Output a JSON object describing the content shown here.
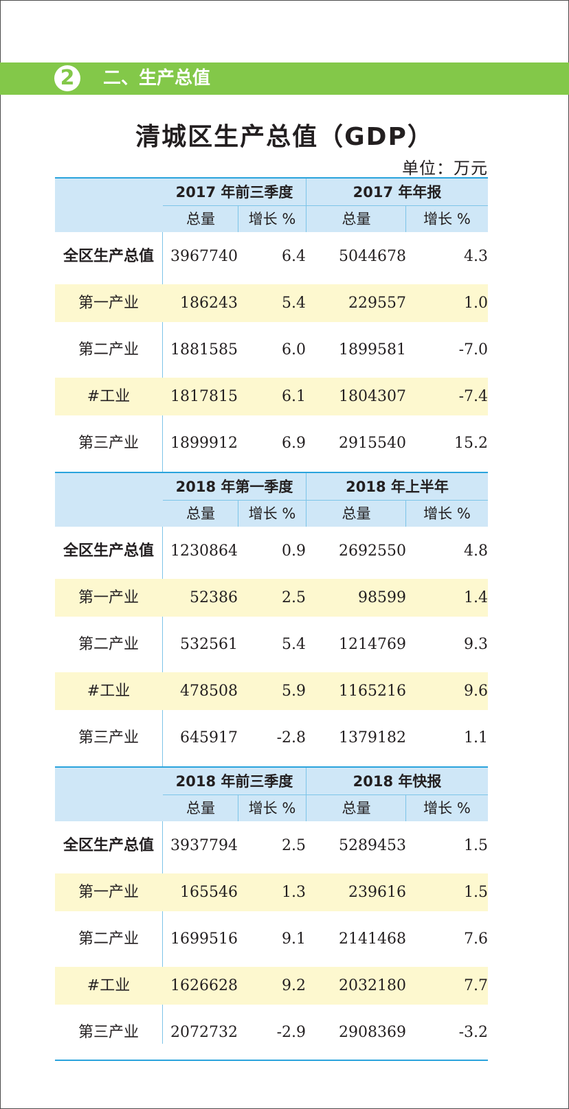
{
  "header": {
    "number": "2",
    "title": "二、生产总值"
  },
  "doc_title": "清城区生产总值（GDP）",
  "unit": "单位：万元",
  "col_sub_total": "总量",
  "col_sub_growth": "增长 %",
  "blocks": [
    {
      "period_left": "2017 年前三季度",
      "period_right": "2017 年年报",
      "rows": [
        {
          "label": "全区生产总值",
          "v1": "3967740",
          "v2": "6.4",
          "v3": "5044678",
          "v4": "4.3"
        },
        {
          "label": "第一产业",
          "v1": "186243",
          "v2": "5.4",
          "v3": "229557",
          "v4": "1.0"
        },
        {
          "label": "第二产业",
          "v1": "1881585",
          "v2": "6.0",
          "v3": "1899581",
          "v4": "-7.0"
        },
        {
          "label": "#工业",
          "v1": "1817815",
          "v2": "6.1",
          "v3": "1804307",
          "v4": "-7.4"
        },
        {
          "label": "第三产业",
          "v1": "1899912",
          "v2": "6.9",
          "v3": "2915540",
          "v4": "15.2"
        }
      ]
    },
    {
      "period_left": "2018 年第一季度",
      "period_right": "2018 年上半年",
      "rows": [
        {
          "label": "全区生产总值",
          "v1": "1230864",
          "v2": "0.9",
          "v3": "2692550",
          "v4": "4.8"
        },
        {
          "label": "第一产业",
          "v1": "52386",
          "v2": "2.5",
          "v3": "98599",
          "v4": "1.4"
        },
        {
          "label": "第二产业",
          "v1": "532561",
          "v2": "5.4",
          "v3": "1214769",
          "v4": "9.3"
        },
        {
          "label": "#工业",
          "v1": "478508",
          "v2": "5.9",
          "v3": "1165216",
          "v4": "9.6"
        },
        {
          "label": "第三产业",
          "v1": "645917",
          "v2": "-2.8",
          "v3": "1379182",
          "v4": "1.1"
        }
      ]
    },
    {
      "period_left": "2018 年前三季度",
      "period_right": "2018 年快报",
      "rows": [
        {
          "label": "全区生产总值",
          "v1": "3937794",
          "v2": "2.5",
          "v3": "5289453",
          "v4": "1.5"
        },
        {
          "label": "第一产业",
          "v1": "165546",
          "v2": "1.3",
          "v3": "239616",
          "v4": "1.5"
        },
        {
          "label": "第二产业",
          "v1": "1699516",
          "v2": "9.1",
          "v3": "2141468",
          "v4": "7.6"
        },
        {
          "label": "#工业",
          "v1": "1626628",
          "v2": "9.2",
          "v3": "2032180",
          "v4": "7.7"
        },
        {
          "label": "第三产业",
          "v1": "2072732",
          "v2": "-2.9",
          "v3": "2908369",
          "v4": "-3.2"
        }
      ]
    }
  ],
  "colors": {
    "header_green": "#83c849",
    "table_blue": "#29a3dc",
    "header_fill": "#cfe7f7",
    "row_yellow": "#fdf8cf"
  }
}
